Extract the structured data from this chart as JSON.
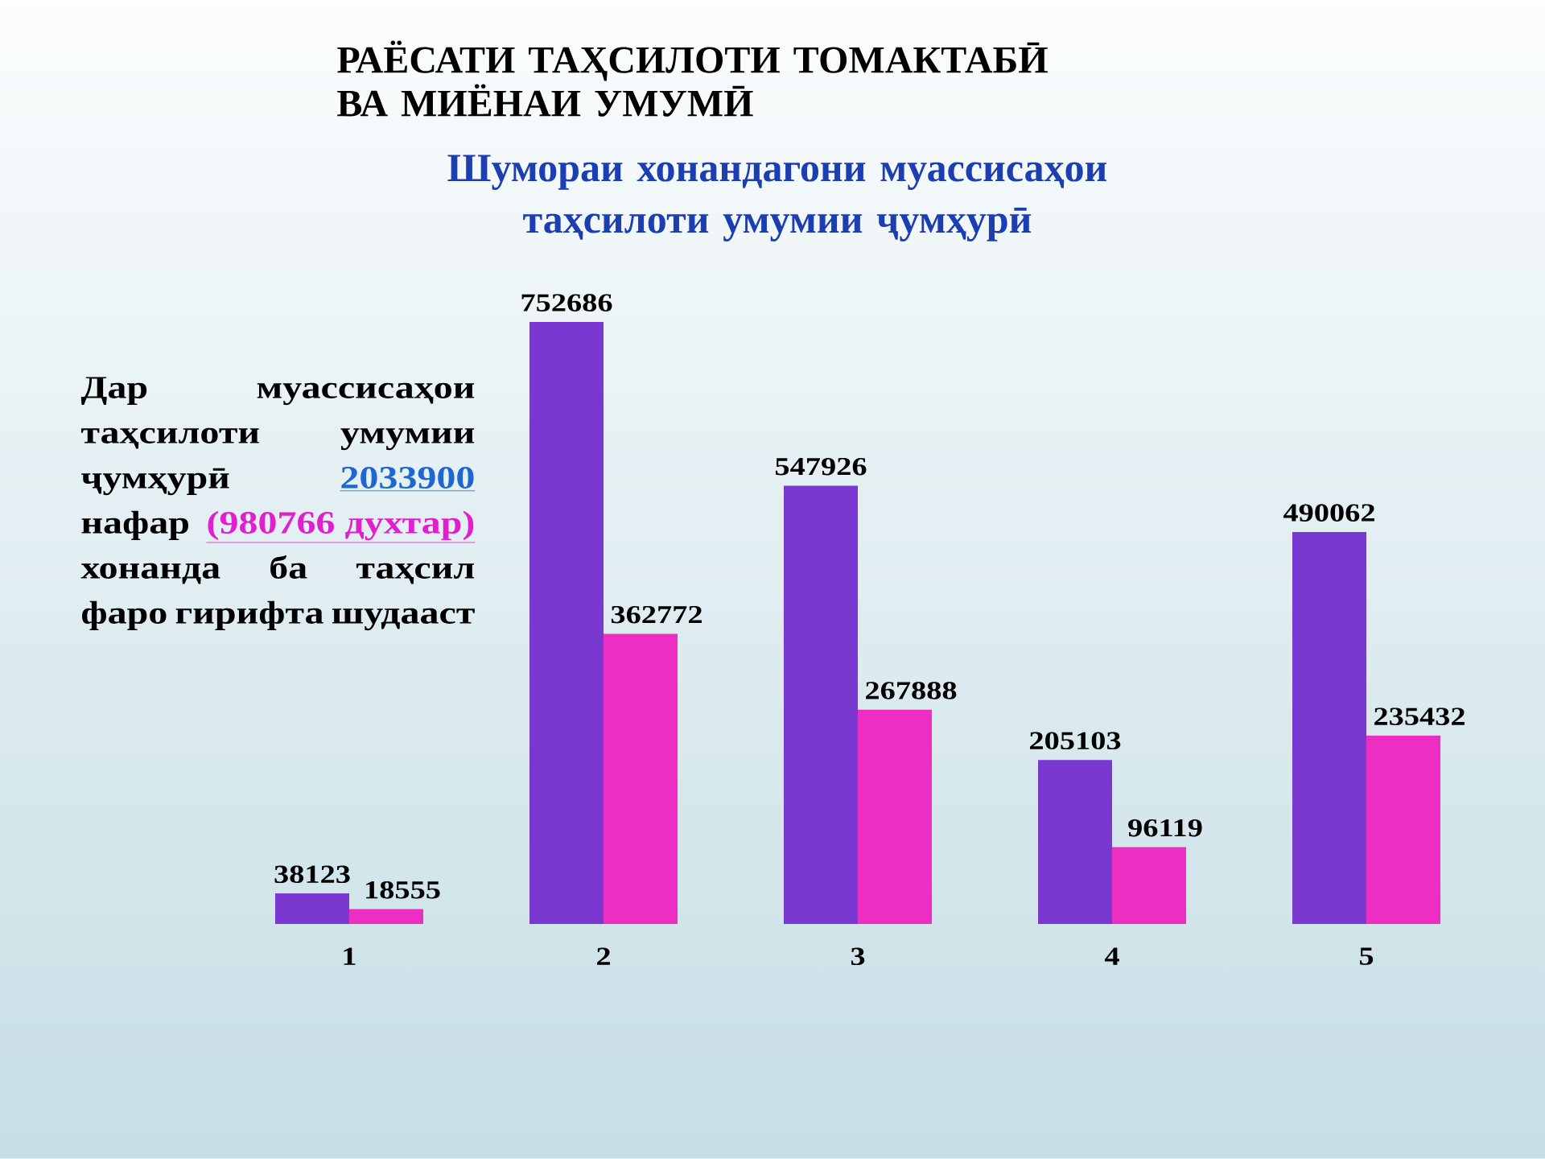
{
  "chart_data": {
    "type": "bar",
    "title": "Шумораи хонандагони муассисаҳои таҳсилоти умумии ҷумҳурӣ",
    "annotations": [
      "РАЁСАТИ ТАҲСИЛОТИ ТОМАКТАБӢ ВА МИЁНАИ УМУМӢ",
      "Дар муассисаҳои таҳсилоти умумии",
      "ҷумҳурӣ",
      "2033900",
      "нафар",
      "(980766 духтар)",
      "хонанда ба таҳсил фаро гирифта шудааст"
    ],
    "categories": [
      "1",
      "2",
      "3",
      "4",
      "5"
    ],
    "series": [
      {
        "color": "#7a38d0",
        "values": [
          38123,
          752686,
          547926,
          205103,
          490062
        ]
      },
      {
        "color": "#ec2fc2",
        "values": [
          18555,
          362772,
          267888,
          96119,
          235432
        ]
      }
    ],
    "data_labels": true,
    "tick_labels": "x"
  }
}
